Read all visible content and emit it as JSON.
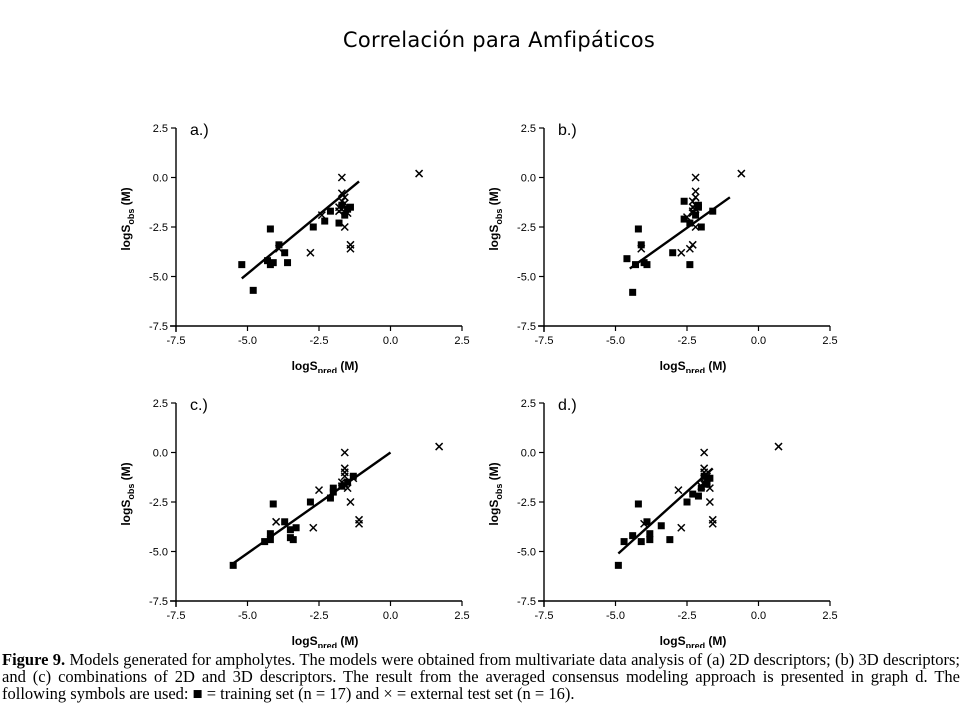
{
  "title": "Correlación para Amfipáticos",
  "axes": {
    "x_ticks": [
      "-7.5",
      "-5.0",
      "-2.5",
      "0.0",
      "2.5"
    ],
    "y_ticks": [
      "2.5",
      "0.0",
      "-2.5",
      "-5.0",
      "-7.5"
    ],
    "xlabel": {
      "base": "logS",
      "sub": "pred",
      "unit": " (M)"
    },
    "ylabel": {
      "base": "logS",
      "sub": "obs",
      "unit": " (M)"
    }
  },
  "caption": {
    "figure_label": "Figure 9.",
    "text": "Models generated for ampholytes. The models were obtained from multivariate data analysis of (a) 2D descriptors; (b) 3D descriptors; and (c) combinations of 2D and 3D descriptors. The result from the averaged consensus modeling approach is presented in graph d. The following symbols are used: ■ = training set (n = 17) and × = external test set (n = 16)."
  },
  "chart_data": [
    {
      "type": "scatter",
      "panel_label": "a.)",
      "xlim": [
        -7.5,
        2.5
      ],
      "ylim": [
        -7.5,
        2.5
      ],
      "xlabel": "logSpred (M)",
      "ylabel": "logSobs (M)",
      "fit_line": [
        [
          -5.2,
          -5.1
        ],
        [
          -1.1,
          -0.2
        ]
      ],
      "series": [
        {
          "marker": "square",
          "points": [
            [
              -5.2,
              -4.4
            ],
            [
              -4.8,
              -5.7
            ],
            [
              -4.3,
              -4.2
            ],
            [
              -4.2,
              -4.4
            ],
            [
              -4.1,
              -4.3
            ],
            [
              -4.2,
              -2.6
            ],
            [
              -3.9,
              -3.4
            ],
            [
              -3.7,
              -3.8
            ],
            [
              -3.6,
              -4.3
            ],
            [
              -2.7,
              -2.5
            ],
            [
              -2.3,
              -2.2
            ],
            [
              -2.1,
              -1.7
            ],
            [
              -1.8,
              -2.3
            ],
            [
              -1.7,
              -1.4
            ],
            [
              -1.6,
              -1.9
            ],
            [
              -1.5,
              -1.6
            ],
            [
              -1.4,
              -1.5
            ]
          ]
        },
        {
          "marker": "x",
          "points": [
            [
              -3.9,
              -3.6
            ],
            [
              -2.8,
              -3.8
            ],
            [
              -2.4,
              -1.9
            ],
            [
              -1.7,
              0.0
            ],
            [
              -1.7,
              -0.8
            ],
            [
              -1.6,
              -1.0
            ],
            [
              -1.7,
              -1.2
            ],
            [
              -1.8,
              -1.5
            ],
            [
              -1.6,
              -2.5
            ],
            [
              -1.4,
              -3.4
            ],
            [
              -1.4,
              -3.6
            ],
            [
              -1.5,
              -1.8
            ],
            [
              -1.6,
              -1.3
            ],
            [
              -1.8,
              -1.7
            ],
            [
              -1.7,
              -1.6
            ],
            [
              1.0,
              0.2
            ]
          ]
        }
      ]
    },
    {
      "type": "scatter",
      "panel_label": "b.)",
      "xlim": [
        -7.5,
        2.5
      ],
      "ylim": [
        -7.5,
        2.5
      ],
      "xlabel": "logSpred (M)",
      "ylabel": "logSobs (M)",
      "fit_line": [
        [
          -4.5,
          -4.6
        ],
        [
          -1.0,
          -1.0
        ]
      ],
      "series": [
        {
          "marker": "square",
          "points": [
            [
              -4.4,
              -5.8
            ],
            [
              -4.6,
              -4.1
            ],
            [
              -4.3,
              -4.4
            ],
            [
              -4.2,
              -2.6
            ],
            [
              -4.1,
              -3.4
            ],
            [
              -4.0,
              -4.3
            ],
            [
              -3.9,
              -4.4
            ],
            [
              -3.0,
              -3.8
            ],
            [
              -2.6,
              -2.1
            ],
            [
              -2.6,
              -1.2
            ],
            [
              -2.4,
              -4.4
            ],
            [
              -2.4,
              -2.3
            ],
            [
              -2.2,
              -1.9
            ],
            [
              -2.1,
              -1.5
            ],
            [
              -2.1,
              -1.4
            ],
            [
              -2.0,
              -2.5
            ],
            [
              -1.6,
              -1.7
            ]
          ]
        },
        {
          "marker": "x",
          "points": [
            [
              -4.1,
              -3.6
            ],
            [
              -2.7,
              -3.8
            ],
            [
              -2.5,
              -2.0
            ],
            [
              -2.2,
              0.0
            ],
            [
              -2.2,
              -0.7
            ],
            [
              -2.2,
              -1.0
            ],
            [
              -2.3,
              -1.2
            ],
            [
              -2.3,
              -1.5
            ],
            [
              -2.2,
              -2.5
            ],
            [
              -2.3,
              -3.4
            ],
            [
              -2.4,
              -3.6
            ],
            [
              -2.3,
              -1.8
            ],
            [
              -2.2,
              -1.4
            ],
            [
              -2.3,
              -1.7
            ],
            [
              -2.2,
              -1.6
            ],
            [
              -0.6,
              0.2
            ]
          ]
        }
      ]
    },
    {
      "type": "scatter",
      "panel_label": "c.)",
      "xlim": [
        -7.5,
        2.5
      ],
      "ylim": [
        -7.5,
        2.5
      ],
      "xlabel": "logSpred (M)",
      "ylabel": "logSobs (M)",
      "fit_line": [
        [
          -5.5,
          -5.6
        ],
        [
          0.0,
          0.0
        ]
      ],
      "series": [
        {
          "marker": "square",
          "points": [
            [
              -5.5,
              -5.7
            ],
            [
              -4.4,
              -4.5
            ],
            [
              -4.2,
              -4.4
            ],
            [
              -4.2,
              -4.1
            ],
            [
              -4.1,
              -2.6
            ],
            [
              -3.7,
              -3.5
            ],
            [
              -3.5,
              -3.9
            ],
            [
              -3.5,
              -4.3
            ],
            [
              -3.4,
              -4.4
            ],
            [
              -3.3,
              -3.8
            ],
            [
              -2.8,
              -2.5
            ],
            [
              -2.1,
              -2.3
            ],
            [
              -2.0,
              -1.8
            ],
            [
              -1.7,
              -1.7
            ],
            [
              -1.5,
              -1.5
            ],
            [
              -1.3,
              -1.2
            ],
            [
              -2.0,
              -2.0
            ]
          ]
        },
        {
          "marker": "x",
          "points": [
            [
              -4.0,
              -3.5
            ],
            [
              -2.7,
              -3.8
            ],
            [
              -2.5,
              -1.9
            ],
            [
              -1.6,
              0.0
            ],
            [
              -1.6,
              -0.8
            ],
            [
              -1.6,
              -1.0
            ],
            [
              -1.6,
              -1.2
            ],
            [
              -1.7,
              -1.5
            ],
            [
              -1.4,
              -2.5
            ],
            [
              -1.1,
              -3.4
            ],
            [
              -1.1,
              -3.6
            ],
            [
              -1.5,
              -1.8
            ],
            [
              -1.3,
              -1.3
            ],
            [
              -1.7,
              -1.7
            ],
            [
              -1.6,
              -1.6
            ],
            [
              1.7,
              0.3
            ]
          ]
        }
      ]
    },
    {
      "type": "scatter",
      "panel_label": "d.)",
      "xlim": [
        -7.5,
        2.5
      ],
      "ylim": [
        -7.5,
        2.5
      ],
      "xlabel": "logSpred (M)",
      "ylabel": "logSobs (M)",
      "fit_line": [
        [
          -4.9,
          -5.1
        ],
        [
          -1.6,
          -0.8
        ]
      ],
      "series": [
        {
          "marker": "square",
          "points": [
            [
              -4.9,
              -5.7
            ],
            [
              -4.7,
              -4.5
            ],
            [
              -4.4,
              -4.2
            ],
            [
              -4.2,
              -2.6
            ],
            [
              -4.1,
              -4.5
            ],
            [
              -3.9,
              -3.5
            ],
            [
              -3.8,
              -4.1
            ],
            [
              -3.8,
              -4.4
            ],
            [
              -3.4,
              -3.7
            ],
            [
              -3.1,
              -4.4
            ],
            [
              -2.5,
              -2.5
            ],
            [
              -2.3,
              -2.1
            ],
            [
              -2.1,
              -2.2
            ],
            [
              -2.0,
              -1.8
            ],
            [
              -1.8,
              -1.6
            ],
            [
              -1.7,
              -1.3
            ],
            [
              -1.9,
              -1.2
            ]
          ]
        },
        {
          "marker": "x",
          "points": [
            [
              -4.0,
              -3.6
            ],
            [
              -2.7,
              -3.8
            ],
            [
              -2.8,
              -1.9
            ],
            [
              -1.9,
              0.0
            ],
            [
              -1.9,
              -0.8
            ],
            [
              -1.9,
              -1.0
            ],
            [
              -1.8,
              -1.2
            ],
            [
              -1.9,
              -1.5
            ],
            [
              -1.7,
              -2.5
            ],
            [
              -1.6,
              -3.4
            ],
            [
              -1.6,
              -3.6
            ],
            [
              -1.7,
              -1.8
            ],
            [
              -1.8,
              -1.3
            ],
            [
              -2.0,
              -1.7
            ],
            [
              -1.9,
              -1.6
            ],
            [
              0.7,
              0.3
            ]
          ]
        }
      ]
    }
  ]
}
